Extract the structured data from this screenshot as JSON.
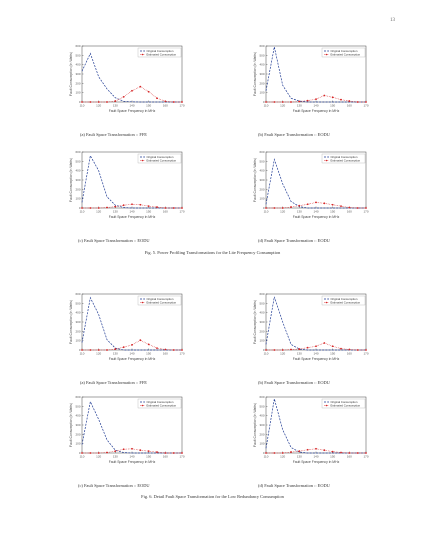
{
  "page": {
    "number": "13"
  },
  "colors": {
    "original": "#1f3a93",
    "estimated": "#d62728",
    "axis": "#444444"
  },
  "legend": {
    "original": "Original Consumption",
    "estimated": "Estimated Consumption"
  },
  "figures": [
    {
      "caption": "Fig. 5. Power Profiling Transformations for the Lite Frequency Consumption",
      "panels": [
        {
          "caption": "(a) Fault Space Transformation :: FFE",
          "chart_data": {
            "type": "line",
            "x": [
              110,
              115,
              120,
              125,
              130,
              135,
              140,
              145,
              150,
              155,
              160,
              165,
              170
            ],
            "series": [
              {
                "name": "Original Consumption",
                "values": [
                  330,
                  520,
                  270,
                  140,
                  45,
                  8,
                  2,
                  0,
                  0,
                  0,
                  0,
                  0,
                  0
                ]
              },
              {
                "name": "Estimated Consumption",
                "values": [
                  0,
                  0,
                  0,
                  0,
                  10,
                  55,
                  120,
                  165,
                  110,
                  40,
                  8,
                  0,
                  0
                ]
              }
            ],
            "xlabel": "Fault Space Frequency in MHz",
            "ylabel": "Fault Consumption (In Watts)",
            "xlim": [
              110,
              170
            ],
            "ylim": [
              0,
              600
            ]
          }
        },
        {
          "caption": "(b) Fault Space Transformation :: EODU",
          "chart_data": {
            "type": "line",
            "x": [
              110,
              115,
              120,
              125,
              130,
              135,
              140,
              145,
              150,
              155,
              160,
              165,
              170
            ],
            "series": [
              {
                "name": "Original Consumption",
                "values": [
                  120,
                  590,
                  180,
                  40,
                  10,
                  0,
                  0,
                  0,
                  0,
                  0,
                  0,
                  0,
                  0
                ]
              },
              {
                "name": "Estimated Consumption",
                "values": [
                  0,
                  0,
                  0,
                  0,
                  5,
                  15,
                  30,
                  70,
                  50,
                  25,
                  10,
                  0,
                  0
                ]
              }
            ],
            "xlabel": "Fault Space Frequency in MHz",
            "ylabel": "Fault Consumption (In Watts)",
            "xlim": [
              110,
              170
            ],
            "ylim": [
              0,
              600
            ]
          }
        },
        {
          "caption": "(c) Fault Space Transformation :: EODU",
          "chart_data": {
            "type": "line",
            "x": [
              110,
              115,
              120,
              125,
              130,
              135,
              140,
              145,
              150,
              155,
              160,
              165,
              170
            ],
            "series": [
              {
                "name": "Original Consumption",
                "values": [
                  60,
                  560,
                  400,
                  120,
                  30,
                  5,
                  0,
                  0,
                  0,
                  0,
                  0,
                  0,
                  0
                ]
              },
              {
                "name": "Estimated Consumption",
                "values": [
                  0,
                  0,
                  0,
                  5,
                  15,
                  30,
                  40,
                  35,
                  20,
                  10,
                  0,
                  0,
                  0
                ]
              }
            ],
            "xlabel": "Fault Space Frequency in MHz",
            "ylabel": "Fault Consumption (In Watts)",
            "xlim": [
              110,
              170
            ],
            "ylim": [
              0,
              600
            ]
          }
        },
        {
          "caption": "(d) Fault Space Transformation :: EODU",
          "chart_data": {
            "type": "line",
            "x": [
              110,
              115,
              120,
              125,
              130,
              135,
              140,
              145,
              150,
              155,
              160,
              165,
              170
            ],
            "series": [
              {
                "name": "Original Consumption",
                "values": [
                  40,
                  520,
                  260,
                  70,
                  15,
                  0,
                  0,
                  0,
                  0,
                  0,
                  0,
                  0,
                  0
                ]
              },
              {
                "name": "Estimated Consumption",
                "values": [
                  0,
                  0,
                  0,
                  10,
                  25,
                  40,
                  60,
                  50,
                  35,
                  20,
                  5,
                  0,
                  0
                ]
              }
            ],
            "xlabel": "Fault Space Frequency in MHz",
            "ylabel": "Fault Consumption (In Watts)",
            "xlim": [
              110,
              170
            ],
            "ylim": [
              0,
              600
            ]
          }
        }
      ]
    },
    {
      "caption": "Fig. 6. Detail Fault Space Transformation for the Low Redundancy Consumption",
      "panels": [
        {
          "caption": "(a) Fault Space Transformation :: FFE",
          "chart_data": {
            "type": "line",
            "x": [
              110,
              115,
              120,
              125,
              130,
              135,
              140,
              145,
              150,
              155,
              160,
              165,
              170
            ],
            "series": [
              {
                "name": "Original Consumption",
                "values": [
                  80,
                  560,
                  380,
                  110,
                  20,
                  0,
                  0,
                  0,
                  0,
                  0,
                  0,
                  0,
                  0
                ]
              },
              {
                "name": "Estimated Consumption",
                "values": [
                  0,
                  0,
                  0,
                  0,
                  10,
                  30,
                  55,
                  105,
                  60,
                  20,
                  5,
                  0,
                  0
                ]
              }
            ],
            "xlabel": "Fault Space Frequency in MHz",
            "ylabel": "Fault Consumption (In Watts)",
            "xlim": [
              110,
              170
            ],
            "ylim": [
              0,
              600
            ]
          }
        },
        {
          "caption": "(b) Fault Space Transformation :: EODU",
          "chart_data": {
            "type": "line",
            "x": [
              110,
              115,
              120,
              125,
              130,
              135,
              140,
              145,
              150,
              155,
              160,
              165,
              170
            ],
            "series": [
              {
                "name": "Original Consumption",
                "values": [
                  60,
                  570,
                  300,
                  60,
                  10,
                  0,
                  0,
                  0,
                  0,
                  0,
                  0,
                  0,
                  0
                ]
              },
              {
                "name": "Estimated Consumption",
                "values": [
                  0,
                  0,
                  0,
                  5,
                  10,
                  25,
                  40,
                  75,
                  40,
                  15,
                  5,
                  0,
                  0
                ]
              }
            ],
            "xlabel": "Fault Space Frequency in MHz",
            "ylabel": "Fault Consumption (In Watts)",
            "xlim": [
              110,
              170
            ],
            "ylim": [
              0,
              600
            ]
          }
        },
        {
          "caption": "(c) Fault Space Transformation :: EODU",
          "chart_data": {
            "type": "line",
            "x": [
              110,
              115,
              120,
              125,
              130,
              135,
              140,
              145,
              150,
              155,
              160,
              165,
              170
            ],
            "series": [
              {
                "name": "Original Consumption",
                "values": [
                  90,
                  550,
                  360,
                  140,
                  30,
                  5,
                  0,
                  0,
                  0,
                  0,
                  0,
                  0,
                  0
                ]
              },
              {
                "name": "Estimated Consumption",
                "values": [
                  0,
                  0,
                  0,
                  5,
                  20,
                  40,
                  45,
                  30,
                  20,
                  10,
                  0,
                  0,
                  0
                ]
              }
            ],
            "xlabel": "Fault Space Frequency in MHz",
            "ylabel": "Fault Consumption (In Watts)",
            "xlim": [
              110,
              170
            ],
            "ylim": [
              0,
              600
            ]
          }
        },
        {
          "caption": "(d) Fault Space Transformation :: EODU",
          "chart_data": {
            "type": "line",
            "x": [
              110,
              115,
              120,
              125,
              130,
              135,
              140,
              145,
              150,
              155,
              160,
              165,
              170
            ],
            "series": [
              {
                "name": "Original Consumption",
                "values": [
                  50,
                  580,
                  250,
                  60,
                  10,
                  0,
                  0,
                  0,
                  0,
                  0,
                  0,
                  0,
                  0
                ]
              },
              {
                "name": "Estimated Consumption",
                "values": [
                  0,
                  0,
                  0,
                  10,
                  20,
                  35,
                  45,
                  30,
                  15,
                  5,
                  0,
                  0,
                  0
                ]
              }
            ],
            "xlabel": "Fault Space Frequency in MHz",
            "ylabel": "Fault Consumption (In Watts)",
            "xlim": [
              110,
              170
            ],
            "ylim": [
              0,
              600
            ]
          }
        }
      ]
    }
  ]
}
